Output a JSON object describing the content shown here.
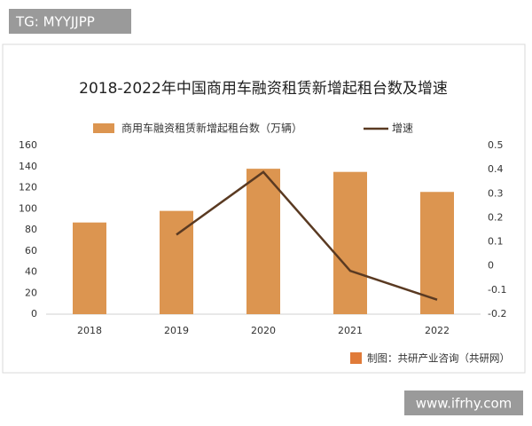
{
  "chart_data": {
    "type": "bar",
    "title": "2018-2022年中国商用车融资租赁新增起租台数及增速",
    "categories": [
      "2018",
      "2019",
      "2020",
      "2021",
      "2022"
    ],
    "series": [
      {
        "name": "商用车融资租赁新增起租台数（万辆）",
        "type": "bar",
        "color": "#dc9550",
        "values": [
          87,
          98,
          138,
          135,
          116
        ]
      },
      {
        "name": "增速",
        "type": "line",
        "color": "#5a3a22",
        "axis": "y2",
        "values": [
          null,
          0.13,
          0.39,
          -0.02,
          -0.14
        ]
      }
    ],
    "ylim": [
      0,
      160
    ],
    "yticks": [
      0,
      20,
      40,
      60,
      80,
      100,
      120,
      140,
      160
    ],
    "y2lim": [
      -0.2,
      0.5
    ],
    "y2ticks": [
      -0.2,
      -0.1,
      0,
      0.1,
      0.2,
      0.3,
      0.4,
      0.5
    ],
    "grid": false,
    "source": "制图：共研产业咨询（共研网）"
  },
  "tag": "TG: MYYJJPP",
  "site": "www.ifrhy.com"
}
